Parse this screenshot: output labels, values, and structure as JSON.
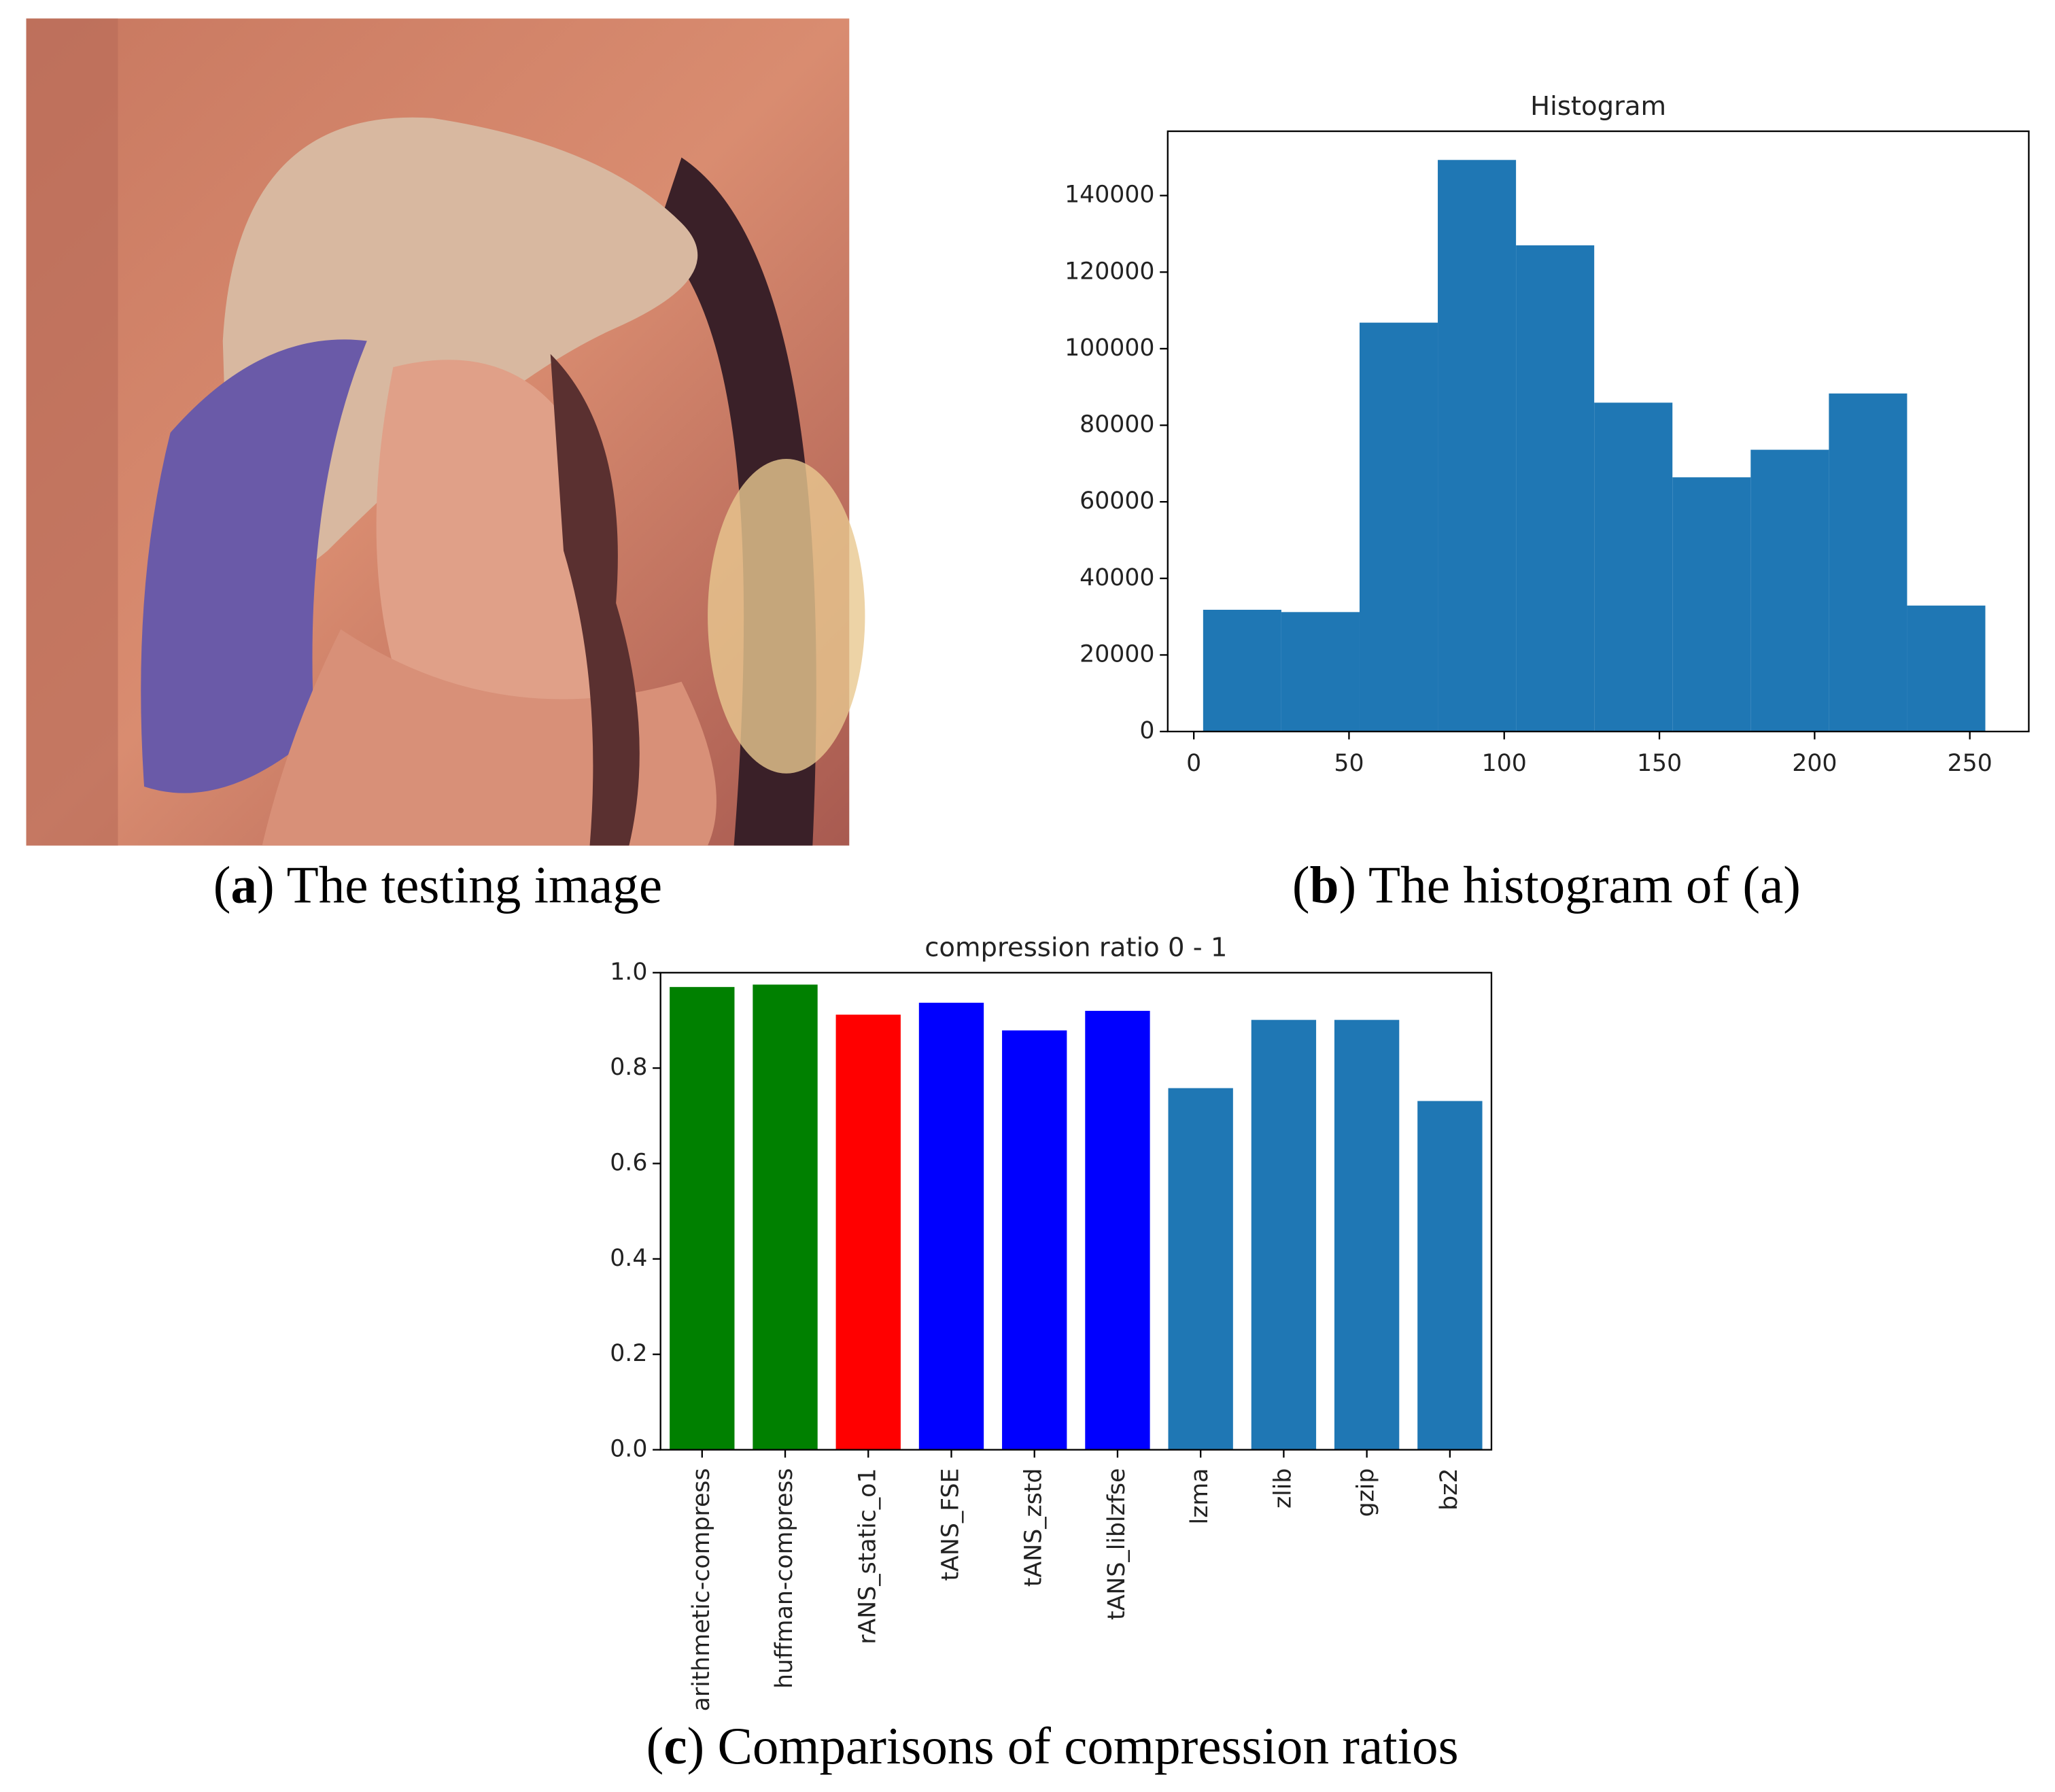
{
  "chart_data": [
    {
      "type": "histogram",
      "title": "Histogram",
      "bins": [
        3,
        28.2,
        53.4,
        78.6,
        103.8,
        129,
        154.2,
        179.4,
        204.6,
        229.8,
        255
      ],
      "values": [
        31800,
        31200,
        106800,
        149300,
        127000,
        85900,
        66400,
        73600,
        88300,
        32900
      ],
      "color": "#1f77b4",
      "xlim": [
        -8.4,
        269
      ],
      "xticks": [
        0,
        50,
        100,
        150,
        200,
        250
      ],
      "ylim": [
        0,
        156800
      ],
      "yticks": [
        0,
        20000,
        40000,
        60000,
        80000,
        100000,
        120000,
        140000
      ],
      "grid": false
    },
    {
      "type": "bar",
      "title": "compression ratio 0 - 1",
      "categories": [
        "arithmetic-compress",
        "huffman-compress",
        "rANS_static_o1",
        "tANS_FSE",
        "tANS_zstd",
        "tANS_liblzfse",
        "lzma",
        "zlib",
        "gzip",
        "bz2"
      ],
      "values": [
        0.97,
        0.975,
        0.912,
        0.937,
        0.879,
        0.92,
        0.758,
        0.901,
        0.901,
        0.731
      ],
      "colors": [
        "#008000",
        "#008000",
        "#ff0000",
        "#0000ff",
        "#0000ff",
        "#0000ff",
        "#1f77b4",
        "#1f77b4",
        "#1f77b4",
        "#1f77b4"
      ],
      "ylim": [
        0,
        1.0
      ],
      "yticks": [
        {
          "value": 0,
          "label": "0.0"
        },
        0.2,
        0.4,
        0.6,
        0.8,
        {
          "value": 1.0,
          "label": "1.0"
        }
      ],
      "grid": false
    }
  ],
  "captions": [
    {
      "open": "(",
      "label": "a",
      "text": ") The testing image"
    },
    {
      "open": "(",
      "label": "b",
      "text": ") The histogram of (a)"
    },
    {
      "open": "(",
      "label": "c",
      "text": ") Comparisons of compression ratios"
    }
  ]
}
